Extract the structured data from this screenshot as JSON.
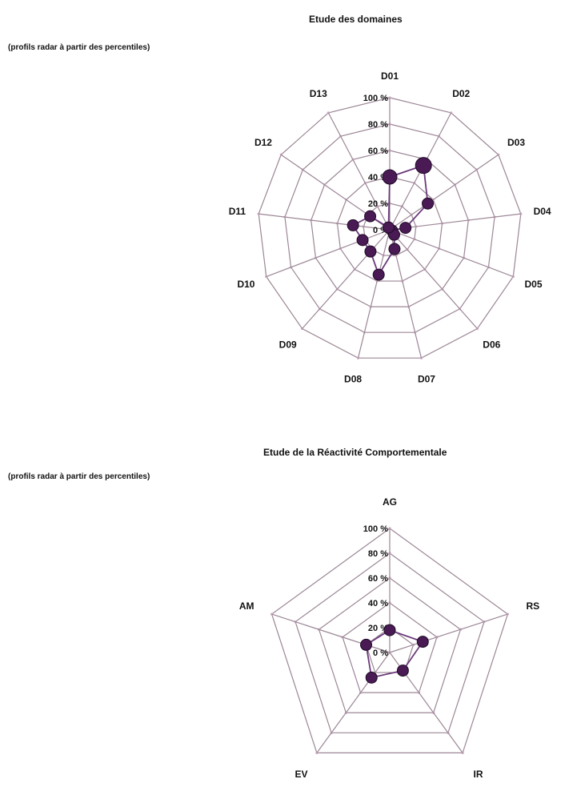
{
  "chart_data": [
    {
      "type": "radar",
      "title": "Etude des domaines",
      "subtitle": "(profils radar à partir des percentiles)",
      "categories": [
        "D01",
        "D02",
        "D03",
        "D04",
        "D05",
        "D06",
        "D07",
        "D08",
        "D09",
        "D10",
        "D11",
        "D12",
        "D13"
      ],
      "values": [
        40,
        55,
        35,
        12,
        2,
        5,
        15,
        35,
        22,
        22,
        28,
        18,
        2
      ],
      "ticks": [
        "0 %",
        "20 %",
        "40 %",
        "60 %",
        "80 %",
        "100 %"
      ],
      "ylim": [
        0,
        100
      ],
      "colors": {
        "grid": "#9c8796",
        "series": "#6b3a7b",
        "marker": "#4a1a55"
      }
    },
    {
      "type": "radar",
      "title": "Etude de la Réactivité Comportementale",
      "subtitle": "(profils radar à partir des percentiles)",
      "categories": [
        "AG",
        "RS",
        "IR",
        "EV",
        "AM"
      ],
      "values": [
        18,
        28,
        18,
        25,
        20
      ],
      "ticks": [
        "0 %",
        "20 %",
        "40 %",
        "60 %",
        "80 %",
        "100 %"
      ],
      "ylim": [
        0,
        100
      ],
      "colors": {
        "grid": "#9c8796",
        "series": "#6b3a7b",
        "marker": "#4a1a55"
      }
    }
  ]
}
